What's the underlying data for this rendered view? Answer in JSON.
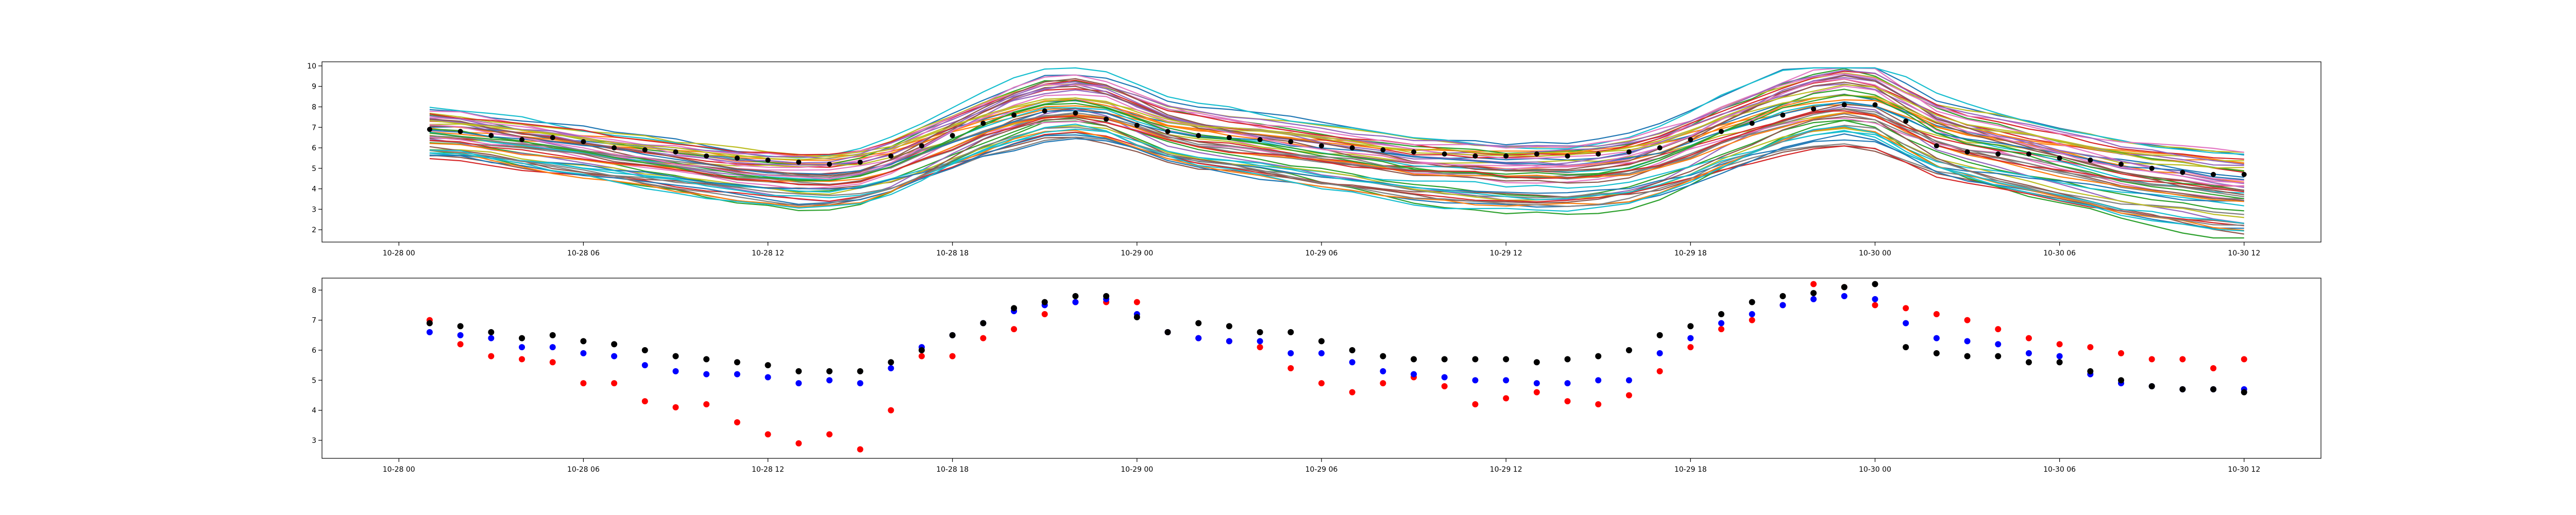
{
  "chart_data": [
    {
      "type": "line",
      "title": "",
      "xlabel": "",
      "ylabel": "",
      "x_ticks": [
        "10-28 00",
        "10-28 06",
        "10-28 12",
        "10-28 18",
        "10-29 00",
        "10-29 06",
        "10-29 12",
        "10-29 18",
        "10-30 00",
        "10-30 06",
        "10-30 12"
      ],
      "y_ticks": [
        "2",
        "3",
        "4",
        "5",
        "6",
        "7",
        "8",
        "9",
        "10"
      ],
      "ylim": [
        1.4,
        10.2
      ],
      "xlim_hours": [
        -2.5,
        62.5
      ],
      "grid": false,
      "legend": "none",
      "ensemble_member_count": 50,
      "ensemble_colors": [
        "#1f77b4",
        "#ff7f0e",
        "#2ca02c",
        "#d62728",
        "#9467bd",
        "#8c564b",
        "#e377c2",
        "#7f7f7f",
        "#bcbd22",
        "#17becf"
      ],
      "marker_series": {
        "color": "#000000",
        "x_hours": [
          1,
          2,
          3,
          4,
          5,
          6,
          7,
          8,
          9,
          10,
          11,
          12,
          13,
          14,
          15,
          16,
          17,
          18,
          19,
          20,
          21,
          22,
          23,
          24,
          25,
          26,
          27,
          28,
          29,
          30,
          31,
          32,
          33,
          34,
          35,
          36,
          37,
          38,
          39,
          40,
          41,
          42,
          43,
          44,
          45,
          46,
          47,
          48,
          49,
          50,
          51,
          52,
          53,
          54,
          55,
          56,
          57,
          58,
          59,
          60
        ],
        "values": [
          6.9,
          6.8,
          6.6,
          6.4,
          6.5,
          6.3,
          6.0,
          5.9,
          5.8,
          5.6,
          5.5,
          5.4,
          5.3,
          5.2,
          5.3,
          5.6,
          6.1,
          6.6,
          7.2,
          7.6,
          7.8,
          7.7,
          7.4,
          7.1,
          6.8,
          6.6,
          6.5,
          6.4,
          6.3,
          6.1,
          6.0,
          5.9,
          5.8,
          5.7,
          5.6,
          5.6,
          5.7,
          5.6,
          5.7,
          5.8,
          6.0,
          6.4,
          6.8,
          7.2,
          7.6,
          7.9,
          8.1,
          8.1,
          7.3,
          6.1,
          5.8,
          5.7,
          5.7,
          5.5,
          5.4,
          5.2,
          5.0,
          4.8,
          4.7,
          4.7
        ]
      },
      "ensemble_mean": [
        6.7,
        6.6,
        6.4,
        6.2,
        6.0,
        5.8,
        5.6,
        5.4,
        5.2,
        5.0,
        4.8,
        4.7,
        4.6,
        4.6,
        4.8,
        5.2,
        5.8,
        6.4,
        7.0,
        7.5,
        7.9,
        8.0,
        7.8,
        7.3,
        6.8,
        6.5,
        6.3,
        6.1,
        5.9,
        5.7,
        5.5,
        5.3,
        5.1,
        5.0,
        4.9,
        4.8,
        4.8,
        4.8,
        4.9,
        5.1,
        5.5,
        6.0,
        6.6,
        7.1,
        7.6,
        8.0,
        8.2,
        8.0,
        7.3,
        6.6,
        6.2,
        5.9,
        5.6,
        5.3,
        5.0,
        4.7,
        4.5,
        4.3,
        4.1,
        4.0
      ]
    },
    {
      "type": "scatter",
      "title": "",
      "xlabel": "",
      "ylabel": "",
      "x_ticks": [
        "10-28 00",
        "10-28 06",
        "10-28 12",
        "10-28 18",
        "10-29 00",
        "10-29 06",
        "10-29 12",
        "10-29 18",
        "10-30 00",
        "10-30 06",
        "10-30 12"
      ],
      "y_ticks": [
        "3",
        "4",
        "5",
        "6",
        "7",
        "8"
      ],
      "ylim": [
        2.4,
        8.4
      ],
      "xlim_hours": [
        -2.5,
        62.5
      ],
      "grid": false,
      "legend": "none",
      "series": [
        {
          "color": "#ff0000",
          "x_hours": [
            1,
            2,
            3,
            4,
            5,
            6,
            7,
            8,
            9,
            10,
            11,
            12,
            13,
            14,
            15,
            16,
            17,
            18,
            19,
            20,
            21,
            22,
            23,
            24,
            25,
            26,
            27,
            28,
            29,
            30,
            31,
            32,
            33,
            34,
            35,
            36,
            37,
            38,
            39,
            40,
            41,
            42,
            43,
            44,
            45,
            46,
            47,
            48,
            49,
            50,
            51,
            52,
            53,
            54,
            55,
            56,
            57,
            58,
            59,
            60
          ],
          "values": [
            7.0,
            6.2,
            5.8,
            5.7,
            5.6,
            4.9,
            4.9,
            4.3,
            4.1,
            4.2,
            3.6,
            3.2,
            2.9,
            3.2,
            2.7,
            4.0,
            5.8,
            5.8,
            6.4,
            6.7,
            7.2,
            7.6,
            7.6,
            7.6,
            6.6,
            6.4,
            6.3,
            6.1,
            5.4,
            4.9,
            4.6,
            4.9,
            5.1,
            4.8,
            4.2,
            4.4,
            4.6,
            4.3,
            4.2,
            4.5,
            5.3,
            6.1,
            6.7,
            7.0,
            7.5,
            8.2,
            8.1,
            7.5,
            7.4,
            7.2,
            7.0,
            6.7,
            6.4,
            6.2,
            6.1,
            5.9,
            5.7,
            5.7,
            5.4,
            5.7
          ]
        },
        {
          "color": "#0000ff",
          "x_hours": [
            1,
            2,
            3,
            4,
            5,
            6,
            7,
            8,
            9,
            10,
            11,
            12,
            13,
            14,
            15,
            16,
            17,
            18,
            19,
            20,
            21,
            22,
            23,
            24,
            25,
            26,
            27,
            28,
            29,
            30,
            31,
            32,
            33,
            34,
            35,
            36,
            37,
            38,
            39,
            40,
            41,
            42,
            43,
            44,
            45,
            46,
            47,
            48,
            49,
            50,
            51,
            52,
            53,
            54,
            55,
            56,
            57,
            58,
            59,
            60
          ],
          "values": [
            6.6,
            6.5,
            6.4,
            6.1,
            6.1,
            5.9,
            5.8,
            5.5,
            5.3,
            5.2,
            5.2,
            5.1,
            4.9,
            5.0,
            4.9,
            5.4,
            6.1,
            6.5,
            6.9,
            7.3,
            7.5,
            7.6,
            7.7,
            7.2,
            6.6,
            6.4,
            6.3,
            6.3,
            5.9,
            5.9,
            5.6,
            5.3,
            5.2,
            5.1,
            5.0,
            5.0,
            4.9,
            4.9,
            5.0,
            5.0,
            5.9,
            6.4,
            6.9,
            7.2,
            7.5,
            7.7,
            7.8,
            7.7,
            6.9,
            6.4,
            6.3,
            6.2,
            5.9,
            5.8,
            5.2,
            4.9,
            4.8,
            4.7,
            4.7,
            4.7
          ]
        },
        {
          "color": "#000000",
          "x_hours": [
            1,
            2,
            3,
            4,
            5,
            6,
            7,
            8,
            9,
            10,
            11,
            12,
            13,
            14,
            15,
            16,
            17,
            18,
            19,
            20,
            21,
            22,
            23,
            24,
            25,
            26,
            27,
            28,
            29,
            30,
            31,
            32,
            33,
            34,
            35,
            36,
            37,
            38,
            39,
            40,
            41,
            42,
            43,
            44,
            45,
            46,
            47,
            48,
            49,
            50,
            51,
            52,
            53,
            54,
            55,
            56,
            57,
            58,
            59,
            60
          ],
          "values": [
            6.9,
            6.8,
            6.6,
            6.4,
            6.5,
            6.3,
            6.2,
            6.0,
            5.8,
            5.7,
            5.6,
            5.5,
            5.3,
            5.3,
            5.3,
            5.6,
            6.0,
            6.5,
            6.9,
            7.4,
            7.6,
            7.8,
            7.8,
            7.1,
            6.6,
            6.9,
            6.8,
            6.6,
            6.6,
            6.3,
            6.0,
            5.8,
            5.7,
            5.7,
            5.7,
            5.7,
            5.6,
            5.7,
            5.8,
            6.0,
            6.5,
            6.8,
            7.2,
            7.6,
            7.8,
            7.9,
            8.1,
            8.2,
            6.1,
            5.9,
            5.8,
            5.8,
            5.6,
            5.6,
            5.3,
            5.0,
            4.8,
            4.7,
            4.7,
            4.6
          ]
        }
      ]
    }
  ]
}
